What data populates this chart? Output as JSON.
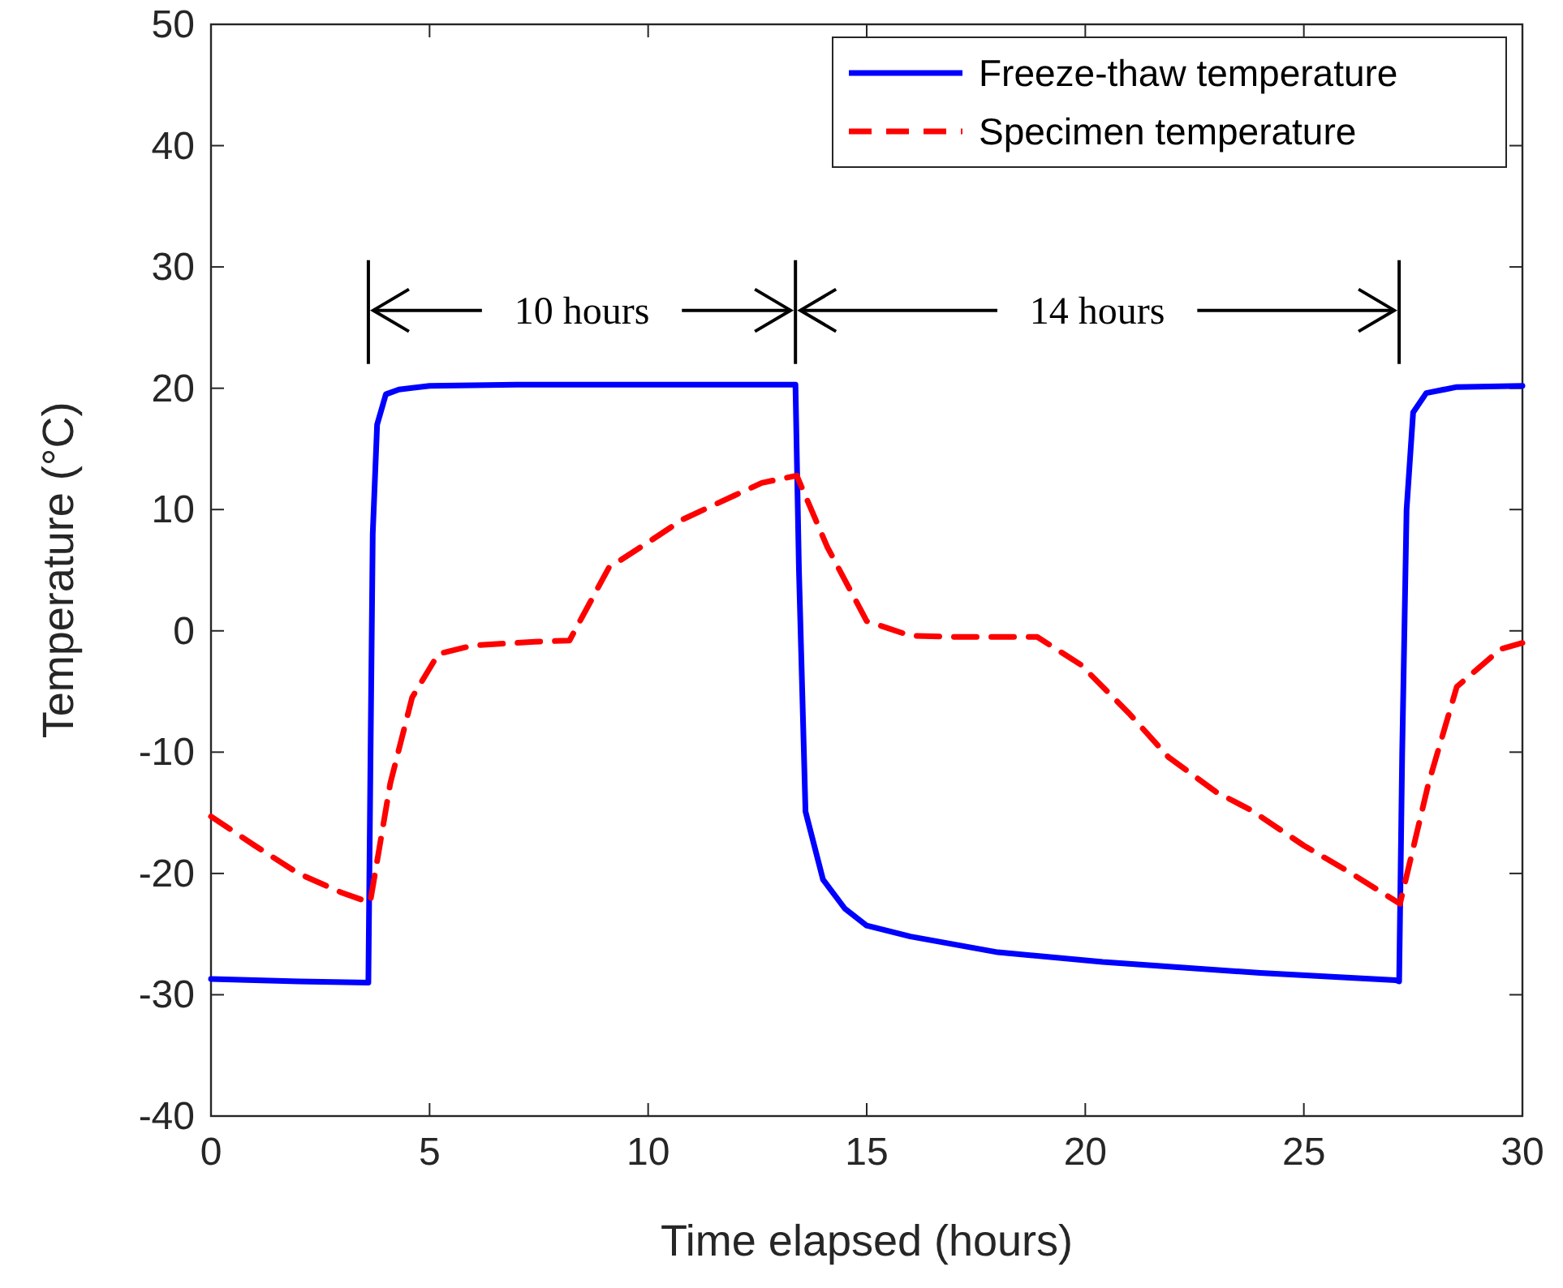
{
  "chart_data": {
    "type": "line",
    "xlabel": "Time elapsed (hours)",
    "ylabel": "Temperature (°C)",
    "xlim": [
      0,
      30
    ],
    "xticks": [
      0,
      5,
      10,
      15,
      20,
      25,
      30
    ],
    "ylim": [
      -40,
      50
    ],
    "yticks": [
      -40,
      -30,
      -20,
      -10,
      0,
      10,
      20,
      30,
      40,
      50
    ],
    "legend": "top right",
    "grid": false,
    "series": [
      {
        "name": "Freeze-thaw temperature",
        "color": "#0000ff",
        "line_style": "solid",
        "x": [
          0,
          2,
          3.6,
          3.65,
          3.7,
          3.8,
          4.0,
          4.3,
          5,
          7,
          10,
          13.3,
          13.37,
          13.45,
          13.6,
          14.0,
          14.5,
          15.0,
          16.0,
          18,
          20.4,
          24,
          27.1,
          27.18,
          27.25,
          27.35,
          27.5,
          27.8,
          28.5,
          30
        ],
        "values": [
          -28.7,
          -28.9,
          -29,
          -10,
          8,
          17,
          19.5,
          19.9,
          20.2,
          20.3,
          20.3,
          20.3,
          20.3,
          5,
          -14.9,
          -20.5,
          -22.9,
          -24.3,
          -25.2,
          -26.5,
          -27.3,
          -28.2,
          -28.8,
          -28.9,
          -10,
          10,
          18,
          19.6,
          20.1,
          20.2
        ]
      },
      {
        "name": "Specimen temperature",
        "color": "#ff0000",
        "line_style": "dashed",
        "x": [
          0,
          1,
          2,
          3,
          3.64,
          4.1,
          4.6,
          5.2,
          6,
          7.4,
          8.2,
          9.1,
          10,
          10.8,
          12,
          12.6,
          13.4,
          14.1,
          15.0,
          16,
          17,
          18.9,
          19.9,
          21,
          21.9,
          23,
          23.8,
          25,
          26,
          27.2,
          27.85,
          28.5,
          29.5,
          30
        ],
        "values": [
          -15.3,
          -17.7,
          -20,
          -21.6,
          -22.4,
          -12.6,
          -5.5,
          -1.9,
          -1.2,
          -0.9,
          -0.8,
          5.2,
          7.3,
          9.2,
          11.2,
          12.2,
          12.8,
          6.9,
          0.8,
          -0.4,
          -0.5,
          -0.5,
          -2.8,
          -6.8,
          -10.4,
          -13.3,
          -14.8,
          -17.7,
          -19.8,
          -22.5,
          -12.6,
          -4.6,
          -1.5,
          -1.0
        ]
      }
    ],
    "annotations": [
      "10 hours",
      "14 hours"
    ]
  }
}
